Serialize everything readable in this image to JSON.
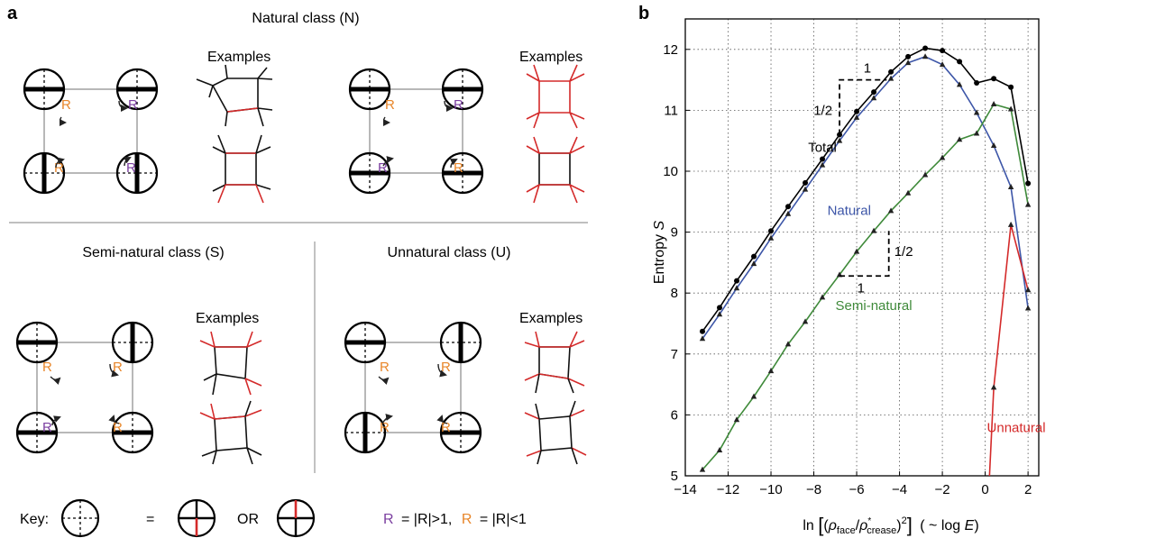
{
  "panel_a": {
    "letter": "a",
    "natural_title": "Natural class (N)",
    "semi_title": "Semi-natural class (S)",
    "unnatural_title": "Unnatural class (U)",
    "examples_label": "Examples",
    "r_letter": "R",
    "key_label": "Key:",
    "equals": "=",
    "or_label": "OR",
    "legend_gt": "= |R|>1,",
    "legend_lt": "= |R|<1",
    "colors": {
      "purple": "#7b3fa0",
      "orange": "#e8862a",
      "red": "#d42a2a",
      "gray": "#999999"
    }
  },
  "panel_b": {
    "letter": "b",
    "xlabel_parts": {
      "ln": "ln",
      "rho": "ρ",
      "face": "face",
      "slash": "/",
      "star": "*",
      "crease": "crease",
      "sq": "2",
      "tail": "( ~ log ",
      "E": "E",
      "close": ")"
    },
    "ylabel_pre": "Entropy ",
    "ylabel_var": "S",
    "slope_run": "1",
    "slope_rise": "1/2"
  },
  "chart_data": {
    "type": "line",
    "xlabel": "ln[(ρface/ρ*crease)^2] ( ~ log E)",
    "ylabel": "Entropy S",
    "xlim": [
      -14,
      2.5
    ],
    "ylim": [
      5,
      12.5
    ],
    "xticks": [
      -14,
      -12,
      -10,
      -8,
      -6,
      -4,
      -2,
      0,
      2
    ],
    "xtick_labels": [
      "−14",
      "−12",
      "−10",
      "−8",
      "−6",
      "−4",
      "−2",
      "0",
      "2"
    ],
    "yticks": [
      5,
      6,
      7,
      8,
      9,
      10,
      11,
      12
    ],
    "grid": true,
    "series": [
      {
        "name": "Total",
        "color": "#000000",
        "marker": "circle",
        "x": [
          -13.2,
          -12.4,
          -11.6,
          -10.8,
          -10.0,
          -9.2,
          -8.4,
          -7.6,
          -6.8,
          -6.0,
          -5.2,
          -4.4,
          -3.6,
          -2.8,
          -2.0,
          -1.2,
          -0.4,
          0.4,
          1.2,
          2.0
        ],
        "y": [
          7.37,
          7.76,
          8.2,
          8.6,
          9.02,
          9.42,
          9.81,
          10.2,
          10.6,
          10.98,
          11.3,
          11.63,
          11.88,
          12.02,
          11.98,
          11.8,
          11.45,
          11.52,
          11.38,
          9.8
        ]
      },
      {
        "name": "Natural",
        "color": "#3d56a8",
        "marker": "triangle",
        "x": [
          -13.2,
          -12.4,
          -11.6,
          -10.8,
          -10.0,
          -9.2,
          -8.4,
          -7.6,
          -6.8,
          -6.0,
          -5.2,
          -4.4,
          -3.6,
          -2.8,
          -2.0,
          -1.2,
          -0.4,
          0.4,
          1.2,
          2.0
        ],
        "y": [
          7.25,
          7.65,
          8.08,
          8.48,
          8.9,
          9.3,
          9.7,
          10.1,
          10.5,
          10.88,
          11.2,
          11.52,
          11.78,
          11.88,
          11.75,
          11.42,
          10.96,
          10.42,
          9.74,
          7.75
        ]
      },
      {
        "name": "Semi-natural",
        "color": "#3f8a3a",
        "marker": "triangle",
        "x": [
          -13.2,
          -12.4,
          -11.6,
          -10.8,
          -10.0,
          -9.2,
          -8.4,
          -7.6,
          -6.8,
          -6.0,
          -5.2,
          -4.4,
          -3.6,
          -2.8,
          -2.0,
          -1.2,
          -0.4,
          0.4,
          1.2,
          2.0
        ],
        "y": [
          5.1,
          5.42,
          5.92,
          6.3,
          6.72,
          7.16,
          7.53,
          7.93,
          8.3,
          8.68,
          9.02,
          9.35,
          9.64,
          9.94,
          10.22,
          10.52,
          10.62,
          11.1,
          11.02,
          9.45
        ]
      },
      {
        "name": "Unnatural",
        "color": "#d42a2a",
        "marker": "triangle",
        "x": [
          0.4,
          1.2,
          2.0
        ],
        "y": [
          6.45,
          9.12,
          8.05
        ]
      }
    ]
  }
}
